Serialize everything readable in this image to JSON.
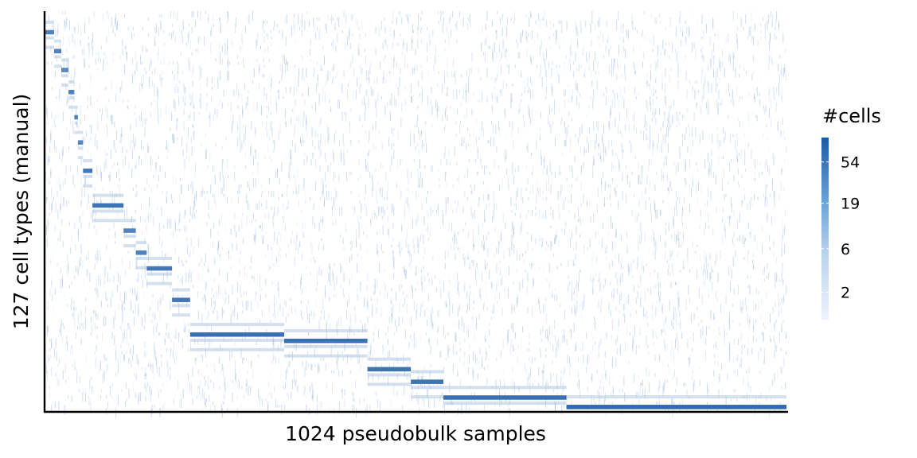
{
  "chart_data": {
    "type": "heatmap",
    "title": "",
    "xlabel": "1024 pseudobulk samples",
    "ylabel": "127 cell types (manual)",
    "n_cols": 1024,
    "n_rows": 127,
    "grid": false,
    "legend_position": "right",
    "legend": {
      "title": "#cells",
      "ticks": [
        2,
        6,
        19,
        54
      ],
      "scale": "log",
      "range": [
        1,
        100
      ]
    },
    "colors": {
      "low": "#e6eef9",
      "high": "#1f5faa",
      "axis": "#000000",
      "background": "#ffffff"
    },
    "dominant_diagonal": {
      "description": "Each pseudobulk sample is dominated by one cell type; columns are sorted by dominant cell type, forming a staircase diagonal from top-left to bottom-right.",
      "blocks": [
        {
          "row": 6,
          "col_start": 0,
          "col_end": 12,
          "value": 30
        },
        {
          "row": 12,
          "col_start": 12,
          "col_end": 22,
          "value": 30
        },
        {
          "row": 18,
          "col_start": 22,
          "col_end": 32,
          "value": 25
        },
        {
          "row": 25,
          "col_start": 32,
          "col_end": 40,
          "value": 30
        },
        {
          "row": 33,
          "col_start": 40,
          "col_end": 45,
          "value": 30
        },
        {
          "row": 41,
          "col_start": 45,
          "col_end": 52,
          "value": 25
        },
        {
          "row": 50,
          "col_start": 52,
          "col_end": 65,
          "value": 40
        },
        {
          "row": 61,
          "col_start": 65,
          "col_end": 108,
          "value": 45
        },
        {
          "row": 69,
          "col_start": 108,
          "col_end": 125,
          "value": 30
        },
        {
          "row": 76,
          "col_start": 125,
          "col_end": 140,
          "value": 30
        },
        {
          "row": 81,
          "col_start": 140,
          "col_end": 175,
          "value": 40
        },
        {
          "row": 91,
          "col_start": 175,
          "col_end": 200,
          "value": 40
        },
        {
          "row": 102,
          "col_start": 200,
          "col_end": 330,
          "value": 50
        },
        {
          "row": 104,
          "col_start": 330,
          "col_end": 445,
          "value": 50
        },
        {
          "row": 113,
          "col_start": 445,
          "col_end": 505,
          "value": 45
        },
        {
          "row": 117,
          "col_start": 505,
          "col_end": 550,
          "value": 45
        },
        {
          "row": 122,
          "col_start": 550,
          "col_end": 720,
          "value": 50
        },
        {
          "row": 125,
          "col_start": 720,
          "col_end": 1024,
          "value": 60
        }
      ]
    }
  }
}
